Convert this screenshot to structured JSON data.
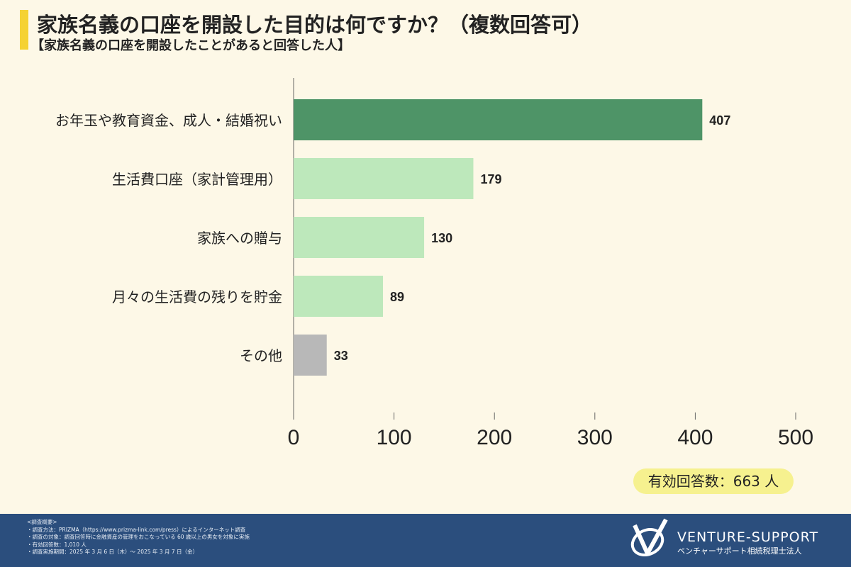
{
  "header": {
    "title": "家族名義の口座を開設した目的は何ですか？（複数回答可）",
    "subtitle": "【家族名義の口座を開設したことがあると回答した人】"
  },
  "chart_data": {
    "type": "bar",
    "orientation": "horizontal",
    "categories": [
      "お年玉や教育資金、成人・結婚祝い",
      "生活費口座（家計管理用）",
      "家族への贈与",
      "月々の生活費の残りを貯金",
      "その他"
    ],
    "values": [
      407,
      179,
      130,
      89,
      33
    ],
    "colors": [
      "#4e9467",
      "#bde8bb",
      "#bde8bb",
      "#bde8bb",
      "#b8b8b8"
    ],
    "xlim": [
      0,
      500
    ],
    "xticks": [
      0,
      100,
      200,
      300,
      400,
      500
    ],
    "grid": false
  },
  "badge": "有効回答数：663 人",
  "footer": {
    "notes": [
      "<調査概要>",
      "・調査方法：PRIZMA（https://www.prizma-link.com/press）によるインターネット調査",
      "・調査の対象：調査回答時に金融資産の管理をおこなっている 60 歳以上の男女を対象に実施",
      "・有効回答数：1,010 人",
      "・調査実施期間：2025 年 3 月 6 日（木）～ 2025 年 3 月 7 日（金）"
    ],
    "brand": "VENTURE-SUPPORT",
    "brand_sub": "ベンチャーサポート相続税理士法人"
  }
}
